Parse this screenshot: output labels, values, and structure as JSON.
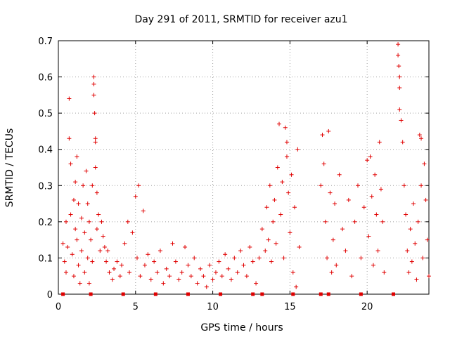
{
  "chart_data": {
    "type": "scatter",
    "title": "Day 291 of 2011, SRMTID for receiver azu1",
    "xlabel": "GPS time / hours",
    "ylabel": "SRMTID / TECUs",
    "xlim": [
      0,
      24
    ],
    "ylim": [
      0,
      0.7
    ],
    "xticks": [
      0,
      5,
      10,
      15,
      20
    ],
    "xtick_labels": [
      "0",
      "5",
      "10",
      "15",
      "20"
    ],
    "yticks": [
      0,
      0.1,
      0.2,
      0.3,
      0.4,
      0.5,
      0.6,
      0.7
    ],
    "ytick_labels": [
      "0",
      "0.1",
      "0.2",
      "0.3",
      "0.4",
      "0.5",
      "0.6",
      "0.7"
    ],
    "grid": true,
    "marker": "plus",
    "color": "#e00000",
    "series_points": [
      [
        0.3,
        0.14
      ],
      [
        0.4,
        0.09
      ],
      [
        0.5,
        0.06
      ],
      [
        0.5,
        0.2
      ],
      [
        0.6,
        0.13
      ],
      [
        0.7,
        0.54
      ],
      [
        0.7,
        0.43
      ],
      [
        0.8,
        0.22
      ],
      [
        0.8,
        0.36
      ],
      [
        0.9,
        0.11
      ],
      [
        1.0,
        0.26
      ],
      [
        1.0,
        0.05
      ],
      [
        1.1,
        0.18
      ],
      [
        1.1,
        0.31
      ],
      [
        1.2,
        0.38
      ],
      [
        1.2,
        0.15
      ],
      [
        1.3,
        0.25
      ],
      [
        1.3,
        0.08
      ],
      [
        1.4,
        0.03
      ],
      [
        1.5,
        0.21
      ],
      [
        1.5,
        0.12
      ],
      [
        1.6,
        0.3
      ],
      [
        1.7,
        0.06
      ],
      [
        1.7,
        0.17
      ],
      [
        1.8,
        0.34
      ],
      [
        1.9,
        0.1
      ],
      [
        1.9,
        0.25
      ],
      [
        2.0,
        0.2
      ],
      [
        2.0,
        0.03
      ],
      [
        2.1,
        0.15
      ],
      [
        2.2,
        0.3
      ],
      [
        2.2,
        0.09
      ],
      [
        2.3,
        0.58
      ],
      [
        2.3,
        0.6
      ],
      [
        2.3,
        0.55
      ],
      [
        2.35,
        0.5
      ],
      [
        2.4,
        0.43
      ],
      [
        2.4,
        0.42
      ],
      [
        2.4,
        0.35
      ],
      [
        2.5,
        0.28
      ],
      [
        2.5,
        0.18
      ],
      [
        2.6,
        0.22
      ],
      [
        2.7,
        0.12
      ],
      [
        2.8,
        0.2
      ],
      [
        2.9,
        0.16
      ],
      [
        3.0,
        0.13
      ],
      [
        3.1,
        0.09
      ],
      [
        3.2,
        0.12
      ],
      [
        3.3,
        0.06
      ],
      [
        3.5,
        0.04
      ],
      [
        3.6,
        0.07
      ],
      [
        3.8,
        0.09
      ],
      [
        4.0,
        0.05
      ],
      [
        4.1,
        0.08
      ],
      [
        4.3,
        0.14
      ],
      [
        4.5,
        0.2
      ],
      [
        4.6,
        0.06
      ],
      [
        4.8,
        0.17
      ],
      [
        5.0,
        0.27
      ],
      [
        5.1,
        0.1
      ],
      [
        5.2,
        0.3
      ],
      [
        5.3,
        0.05
      ],
      [
        5.5,
        0.23
      ],
      [
        5.6,
        0.08
      ],
      [
        5.8,
        0.11
      ],
      [
        6.0,
        0.04
      ],
      [
        6.2,
        0.09
      ],
      [
        6.4,
        0.06
      ],
      [
        6.6,
        0.12
      ],
      [
        6.8,
        0.03
      ],
      [
        7.0,
        0.07
      ],
      [
        7.2,
        0.05
      ],
      [
        7.4,
        0.14
      ],
      [
        7.6,
        0.09
      ],
      [
        7.8,
        0.04
      ],
      [
        8.0,
        0.06
      ],
      [
        8.2,
        0.13
      ],
      [
        8.4,
        0.08
      ],
      [
        8.6,
        0.05
      ],
      [
        8.8,
        0.1
      ],
      [
        9.0,
        0.03
      ],
      [
        9.2,
        0.07
      ],
      [
        9.4,
        0.05
      ],
      [
        9.6,
        0.02
      ],
      [
        9.8,
        0.08
      ],
      [
        10.0,
        0.04
      ],
      [
        10.2,
        0.06
      ],
      [
        10.4,
        0.09
      ],
      [
        10.6,
        0.05
      ],
      [
        10.8,
        0.11
      ],
      [
        11.0,
        0.07
      ],
      [
        11.2,
        0.04
      ],
      [
        11.4,
        0.1
      ],
      [
        11.6,
        0.06
      ],
      [
        11.8,
        0.12
      ],
      [
        12.0,
        0.08
      ],
      [
        12.2,
        0.05
      ],
      [
        12.4,
        0.13
      ],
      [
        12.6,
        0.09
      ],
      [
        12.8,
        0.03
      ],
      [
        13.0,
        0.1
      ],
      [
        13.2,
        0.18
      ],
      [
        13.4,
        0.12
      ],
      [
        13.5,
        0.24
      ],
      [
        13.6,
        0.15
      ],
      [
        13.7,
        0.3
      ],
      [
        13.8,
        0.09
      ],
      [
        13.9,
        0.2
      ],
      [
        14.0,
        0.26
      ],
      [
        14.1,
        0.14
      ],
      [
        14.2,
        0.35
      ],
      [
        14.3,
        0.47
      ],
      [
        14.4,
        0.22
      ],
      [
        14.5,
        0.31
      ],
      [
        14.6,
        0.1
      ],
      [
        14.7,
        0.46
      ],
      [
        14.8,
        0.38
      ],
      [
        14.8,
        0.42
      ],
      [
        14.9,
        0.28
      ],
      [
        15.0,
        0.17
      ],
      [
        15.1,
        0.33
      ],
      [
        15.2,
        0.06
      ],
      [
        15.3,
        0.24
      ],
      [
        15.4,
        0.02
      ],
      [
        15.5,
        0.4
      ],
      [
        15.6,
        0.13
      ],
      [
        17.0,
        0.3
      ],
      [
        17.1,
        0.44
      ],
      [
        17.2,
        0.36
      ],
      [
        17.3,
        0.2
      ],
      [
        17.4,
        0.1
      ],
      [
        17.5,
        0.45
      ],
      [
        17.6,
        0.28
      ],
      [
        17.7,
        0.06
      ],
      [
        17.8,
        0.15
      ],
      [
        17.9,
        0.25
      ],
      [
        18.0,
        0.08
      ],
      [
        18.2,
        0.33
      ],
      [
        18.4,
        0.18
      ],
      [
        18.6,
        0.12
      ],
      [
        18.8,
        0.26
      ],
      [
        19.0,
        0.05
      ],
      [
        19.2,
        0.2
      ],
      [
        19.4,
        0.3
      ],
      [
        19.6,
        0.1
      ],
      [
        19.8,
        0.24
      ],
      [
        20.0,
        0.37
      ],
      [
        20.1,
        0.16
      ],
      [
        20.2,
        0.38
      ],
      [
        20.3,
        0.27
      ],
      [
        20.4,
        0.08
      ],
      [
        20.5,
        0.33
      ],
      [
        20.6,
        0.22
      ],
      [
        20.7,
        0.12
      ],
      [
        20.8,
        0.42
      ],
      [
        20.9,
        0.29
      ],
      [
        21.0,
        0.2
      ],
      [
        21.1,
        0.06
      ],
      [
        22.0,
        0.69
      ],
      [
        22.0,
        0.66
      ],
      [
        22.05,
        0.63
      ],
      [
        22.1,
        0.6
      ],
      [
        22.1,
        0.57
      ],
      [
        22.1,
        0.51
      ],
      [
        22.2,
        0.48
      ],
      [
        22.3,
        0.42
      ],
      [
        22.4,
        0.3
      ],
      [
        22.5,
        0.22
      ],
      [
        22.6,
        0.12
      ],
      [
        22.7,
        0.06
      ],
      [
        22.8,
        0.18
      ],
      [
        22.9,
        0.09
      ],
      [
        23.0,
        0.25
      ],
      [
        23.1,
        0.14
      ],
      [
        23.2,
        0.04
      ],
      [
        23.3,
        0.2
      ],
      [
        23.4,
        0.44
      ],
      [
        23.5,
        0.43
      ],
      [
        23.5,
        0.3
      ],
      [
        23.6,
        0.1
      ],
      [
        23.7,
        0.36
      ],
      [
        23.8,
        0.26
      ],
      [
        23.9,
        0.15
      ],
      [
        24.0,
        0.05
      ]
    ],
    "zero_markers_x": [
      0.3,
      2.1,
      4.2,
      6.3,
      8.4,
      10.5,
      12.6,
      13.2,
      15.2,
      17.0,
      17.5,
      19.6,
      21.7
    ]
  }
}
